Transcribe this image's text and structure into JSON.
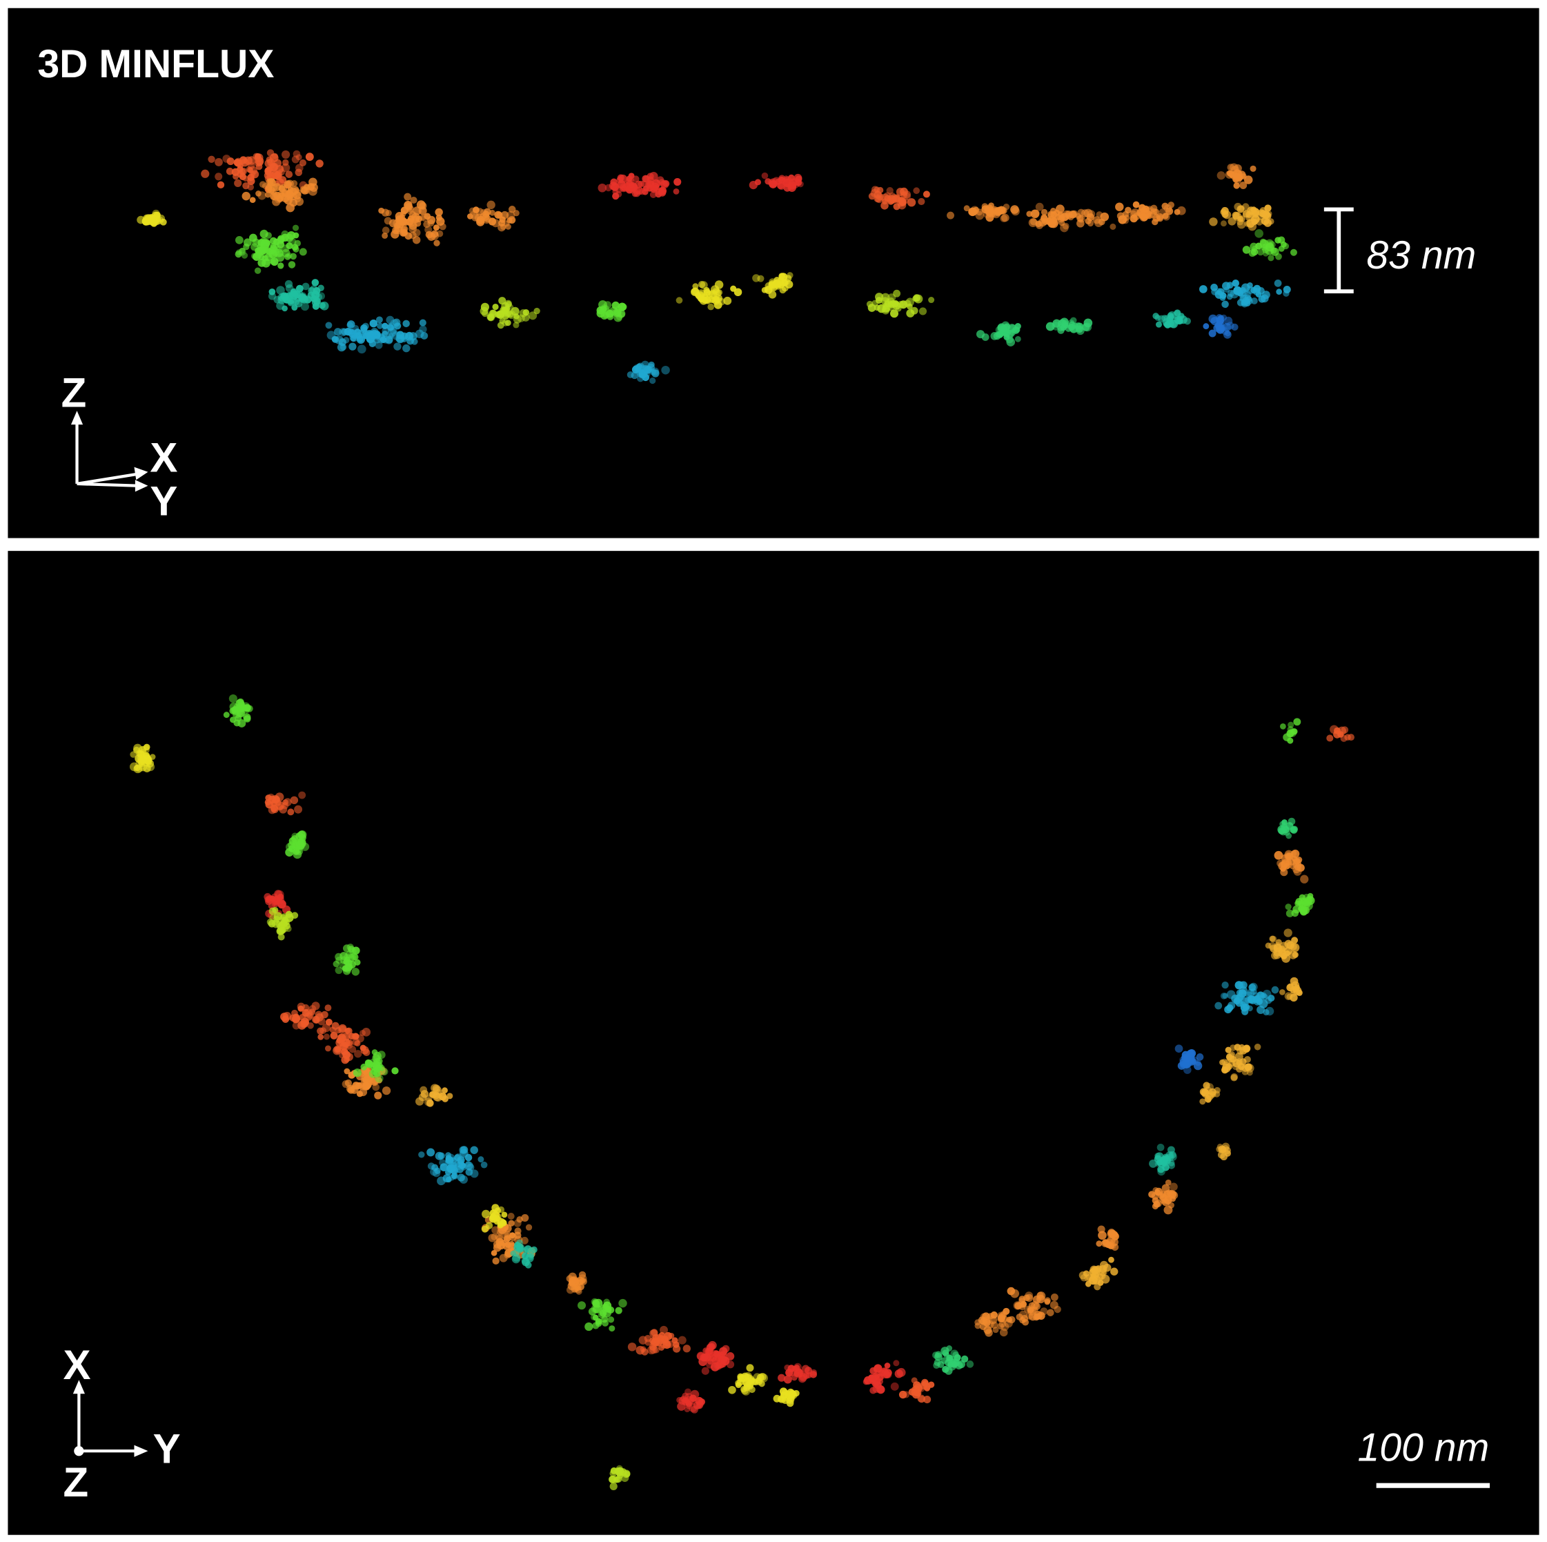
{
  "panels": [
    {
      "title": "3D MINFLUX",
      "scale_label": "83 nm",
      "axes": {
        "up": "Z",
        "right_upper": "X",
        "right_lower": "Y"
      }
    },
    {
      "scale_label": "100 nm",
      "axes": {
        "up": "X",
        "right": "Y",
        "out": "Z"
      }
    }
  ]
}
